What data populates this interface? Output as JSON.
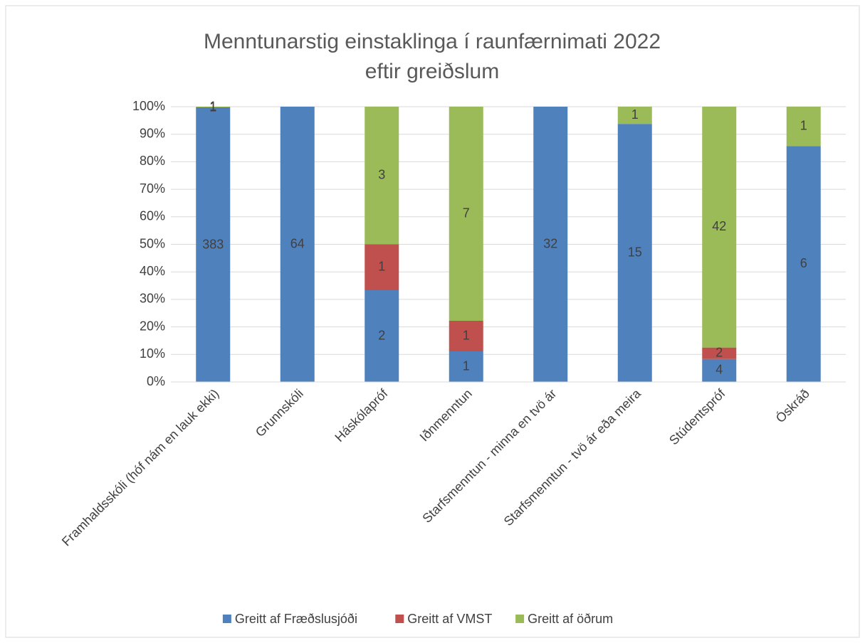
{
  "chart_data": {
    "type": "stacked_percent_bar",
    "title": "Menntunarstig einstaklinga í raunfærnimati 2022 eftir greiðslum",
    "categories": [
      "Framhaldsskóli (hóf nám en lauk ekki)",
      "Grunnskóli",
      "Háskólapróf",
      "Iðnmenntun",
      "Starfsmenntun - minna en tvö ár",
      "Starfsmenntun - tvö ár eða meira",
      "Stúdentspróf",
      "Óskráð"
    ],
    "series": [
      {
        "name": "Greitt af Fræðslusjóði",
        "color": "#4f81bd",
        "values": [
          383,
          64,
          2,
          1,
          32,
          15,
          4,
          6
        ]
      },
      {
        "name": "Greitt af VMST",
        "color": "#c0504d",
        "values": [
          1,
          null,
          1,
          1,
          null,
          null,
          2,
          null
        ]
      },
      {
        "name": "Greitt af öðrum",
        "color": "#9bbb59",
        "values": [
          1,
          null,
          3,
          7,
          null,
          1,
          42,
          1
        ]
      }
    ],
    "ylim": [
      0,
      100
    ],
    "yticks": [
      {
        "value": 0,
        "label": "0%"
      },
      {
        "value": 10,
        "label": "10%"
      },
      {
        "value": 20,
        "label": "20%"
      },
      {
        "value": 30,
        "label": "30%"
      },
      {
        "value": 40,
        "label": "40%"
      },
      {
        "value": 50,
        "label": "50%"
      },
      {
        "value": 60,
        "label": "60%"
      },
      {
        "value": 70,
        "label": "70%"
      },
      {
        "value": 80,
        "label": "80%"
      },
      {
        "value": 90,
        "label": "90%"
      },
      {
        "value": 100,
        "label": "100%"
      }
    ],
    "grid": true,
    "legend": "bottom"
  }
}
